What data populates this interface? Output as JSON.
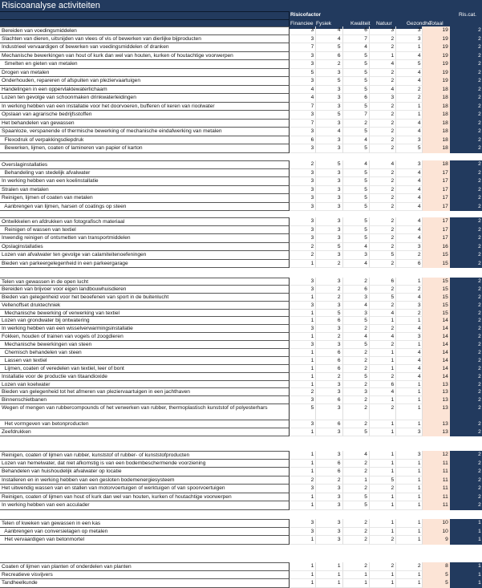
{
  "title": "Risicoanalyse activiteiten",
  "header": {
    "group": "Risicofactor",
    "ris_cat": "Ris.cat.",
    "columns": [
      "Financiee",
      "Fysiek",
      "Kwaliteit",
      "Natuur",
      "Gezondhe",
      "Totaal"
    ]
  },
  "colors": {
    "header_bg": "#223a5e",
    "total_bg": "#fce4d6"
  },
  "sections": [
    [
      [
        "Bereiden van voedingsmiddelen",
        3,
        4,
        6,
        3,
        3,
        19,
        2
      ],
      [
        "Slachten van dieren, uitsnijden van vlees of vis of bewerken van dierlijke bijproducten",
        3,
        4,
        7,
        2,
        3,
        19,
        2
      ],
      [
        "Industrieel vervaardigen of bewerken van voedingsmiddelen of dranken",
        7,
        5,
        4,
        2,
        1,
        19,
        2
      ],
      [
        "Mechanische bewerkingen van hout of kurk dan wel van houten, kurken of houtachtige voorwerpen",
        3,
        6,
        5,
        1,
        4,
        19,
        2
      ],
      [
        "  Smelten en gieten van metalen",
        3,
        2,
        5,
        4,
        5,
        19,
        2
      ],
      [
        "Drogen van metalen",
        5,
        3,
        5,
        2,
        4,
        19,
        2
      ],
      [
        "Onderhouden, repareren of afspuiten van pleziervaartuigen",
        3,
        5,
        5,
        2,
        4,
        19,
        2
      ],
      [
        "Handelingen in een oppervlaktewaterlichaam",
        4,
        3,
        5,
        4,
        2,
        18,
        2
      ],
      [
        "Lozen ten gevolge van schoonmaken drinkwaterleidingen",
        4,
        3,
        6,
        3,
        2,
        18,
        2
      ],
      [
        "In werking hebben van een installatie voor het doorvoeren, bufferen of keren van rioolwater",
        7,
        3,
        5,
        2,
        1,
        18,
        2
      ],
      [
        "Opslaan van agrarische bedrijfsstoffen",
        3,
        5,
        7,
        2,
        1,
        18,
        2
      ],
      [
        "Het behandelen van gewassen",
        7,
        3,
        2,
        2,
        4,
        18,
        2
      ],
      [
        "Spaanloze, verspanende of thermische bewerking of mechanische eindafwerking van metalen",
        3,
        4,
        5,
        2,
        4,
        18,
        2
      ],
      [
        "  Flexodruk of verpakkingsdiepdruk",
        6,
        3,
        4,
        2,
        3,
        18,
        2
      ],
      [
        "  Bewerken, lijmen, coaten of lamineren van papier of karton",
        3,
        3,
        5,
        2,
        5,
        18,
        2
      ]
    ],
    [
      [
        "Overslaginstallaties",
        2,
        5,
        4,
        4,
        3,
        18,
        2
      ],
      [
        "  Behandeling van stedelijk afvalwater",
        3,
        3,
        5,
        2,
        4,
        17,
        2
      ],
      [
        "In werking hebben van een koelinstallatie",
        3,
        3,
        5,
        2,
        4,
        17,
        2
      ],
      [
        "Stralen van metalen",
        3,
        3,
        5,
        2,
        4,
        17,
        2
      ],
      [
        "Reinigen, lijmen of coaten van metalen",
        3,
        3,
        5,
        2,
        4,
        17,
        2
      ],
      [
        "  Aanbrengen van lijmen, harsen of coatings op steen",
        3,
        3,
        5,
        2,
        4,
        17,
        2
      ]
    ],
    [
      [
        "Ontwikkelen en afdrukken van fotografisch materiaal",
        3,
        3,
        5,
        2,
        4,
        17,
        2
      ],
      [
        "  Reinigen of wassen van textiel",
        3,
        3,
        5,
        2,
        4,
        17,
        2
      ],
      [
        "Inwendig reinigen of ontsmetten van transportmiddelen",
        3,
        3,
        5,
        2,
        4,
        17,
        2
      ],
      [
        "Opslaginstallaties",
        2,
        5,
        4,
        2,
        3,
        16,
        2
      ],
      [
        "Lozen van afvalwater ten gevolge van calamiteitenoefeningen",
        2,
        3,
        3,
        5,
        2,
        15,
        2
      ],
      [
        "Bieden van parkeergelegenheid in een parkeergarage",
        1,
        2,
        4,
        2,
        6,
        15,
        2
      ]
    ],
    [
      [
        "Telen van gewassen in de open lucht",
        3,
        3,
        2,
        6,
        1,
        15,
        2
      ],
      [
        "Bereiden van brijvoer voor eigen landbouwhuisdieren",
        3,
        2,
        6,
        2,
        2,
        15,
        2
      ],
      [
        "Bieden van gelegenheid voor het beoefenen van sport in de buitenlucht",
        1,
        2,
        3,
        5,
        4,
        15,
        2
      ],
      [
        "Vellenoffset druktechniek",
        3,
        3,
        4,
        2,
        3,
        15,
        2
      ],
      [
        "  Mechanische bewerking of verwerking van textiel",
        1,
        5,
        3,
        4,
        2,
        15,
        2
      ],
      [
        "Lozen van grondwater bij ontwatering",
        1,
        6,
        5,
        1,
        1,
        14,
        2
      ],
      [
        "In werking hebben van een wisselverwarmingsinstallatie",
        3,
        3,
        2,
        2,
        4,
        14,
        2
      ],
      [
        "Fokken, houden of trainen van vogels of zoogdieren",
        1,
        2,
        4,
        4,
        3,
        14,
        2
      ],
      [
        "  Mechanische bewerkingen van steen",
        3,
        3,
        5,
        2,
        1,
        14,
        2
      ],
      [
        "  Chemisch behandelen van steen",
        1,
        6,
        2,
        1,
        4,
        14,
        2
      ],
      [
        "  Lassen van textiel",
        1,
        6,
        2,
        1,
        4,
        14,
        2
      ],
      [
        "  Lijmen, coaten of veredelen van textiel, leer of bont",
        1,
        6,
        2,
        1,
        4,
        14,
        2
      ],
      [
        "Installatie voor de productie van titaandioxide",
        1,
        2,
        5,
        2,
        4,
        14,
        2
      ],
      [
        "Lozen van koelwater",
        1,
        3,
        2,
        6,
        1,
        13,
        2
      ],
      [
        "Bieden van gelegenheid tot het afmeren van pleziervaartuigen in een jachthaven",
        2,
        3,
        3,
        4,
        1,
        13,
        2
      ],
      [
        "Binnenschietbanen",
        3,
        6,
        2,
        1,
        1,
        13,
        2
      ],
      [
        "Wegen of mengen van rubbercompounds of het verwerken van rubber, thermoplastisch kunststof of polyesterhars",
        5,
        3,
        2,
        2,
        1,
        13,
        2
      ],
      [
        "  Het vormgeven van betonproducten",
        3,
        6,
        2,
        1,
        1,
        13,
        2
      ],
      [
        "Zeefdrukken",
        1,
        3,
        5,
        1,
        3,
        13,
        2
      ]
    ],
    [
      [
        "Reinigen, coaten of lijmen van rubber, kunststof of rubber- of kunststofproducten",
        1,
        3,
        4,
        1,
        3,
        12,
        2
      ],
      [
        "Lozen van hemelwater, dat niet afkomstig is van een bodembeschermende voorziening",
        1,
        6,
        2,
        1,
        1,
        11,
        2
      ],
      [
        "Behandelen van huishoudelijk afvalwater op locatie",
        1,
        6,
        2,
        1,
        1,
        11,
        2
      ],
      [
        "Installeren en in werking hebben van een gesloten bodemenergiesysteem",
        2,
        2,
        1,
        5,
        1,
        11,
        2
      ],
      [
        "Het uitwendig wassen van en stallen van motorvoertuigen of werktuigen of van spoorvoertuigen",
        3,
        3,
        2,
        2,
        1,
        11,
        2
      ],
      [
        "Reinigen, coaten of lijmen van hout of kurk dan wel van houten, kurken of houtachtige voorwerpen",
        1,
        3,
        5,
        1,
        1,
        11,
        2
      ],
      [
        "In werking hebben van een acculader",
        1,
        3,
        5,
        1,
        1,
        11,
        2
      ]
    ],
    [
      [
        "Telen of kweken van gewassen in een kas",
        3,
        3,
        2,
        1,
        1,
        10,
        1
      ],
      [
        "  Aanbrengen van conversielagen op metalen",
        3,
        3,
        2,
        1,
        1,
        10,
        1
      ],
      [
        "  Het vervaardigen van betonmortel",
        1,
        3,
        2,
        2,
        1,
        9,
        1
      ]
    ],
    [
      [
        "Coaten of lijmen van planten of onderdelen van planten",
        1,
        1,
        2,
        2,
        2,
        8,
        1
      ],
      [
        "Recreatieve visvijvers",
        1,
        1,
        1,
        1,
        1,
        5,
        1
      ],
      [
        "Tandheelkunde",
        1,
        1,
        1,
        1,
        1,
        5,
        1
      ]
    ]
  ]
}
